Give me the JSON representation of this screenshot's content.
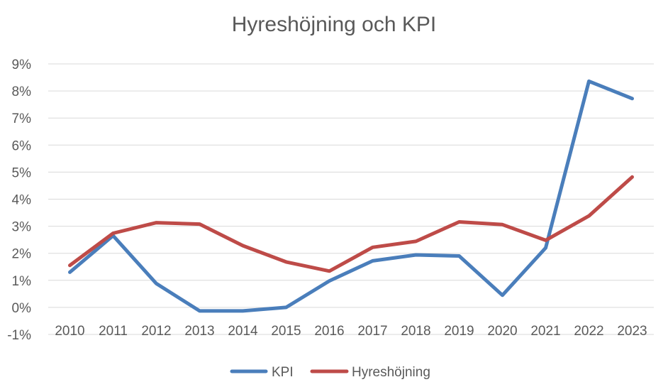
{
  "chart_data": {
    "type": "line",
    "title": "Hyreshöjning och KPI",
    "xlabel": "",
    "ylabel": "",
    "categories": [
      "2010",
      "2011",
      "2012",
      "2013",
      "2014",
      "2015",
      "2016",
      "2017",
      "2018",
      "2019",
      "2020",
      "2021",
      "2022",
      "2023"
    ],
    "ylim": [
      -1,
      9
    ],
    "yticks": [
      -1,
      0,
      1,
      2,
      3,
      4,
      5,
      6,
      7,
      8,
      9
    ],
    "ytick_suffix": "%",
    "grid": true,
    "legend_position": "bottom",
    "series": [
      {
        "name": "KPI",
        "color": "#4a7ebb",
        "values": [
          1.3,
          2.65,
          0.88,
          -0.13,
          -0.13,
          0.0,
          0.98,
          1.72,
          1.94,
          1.9,
          0.45,
          2.2,
          8.36,
          7.72
        ]
      },
      {
        "name": "Hyreshöjning",
        "color": "#be4b48",
        "values": [
          1.55,
          2.74,
          3.13,
          3.08,
          2.28,
          1.68,
          1.34,
          2.22,
          2.44,
          3.16,
          3.06,
          2.48,
          3.38,
          4.82
        ]
      }
    ]
  }
}
